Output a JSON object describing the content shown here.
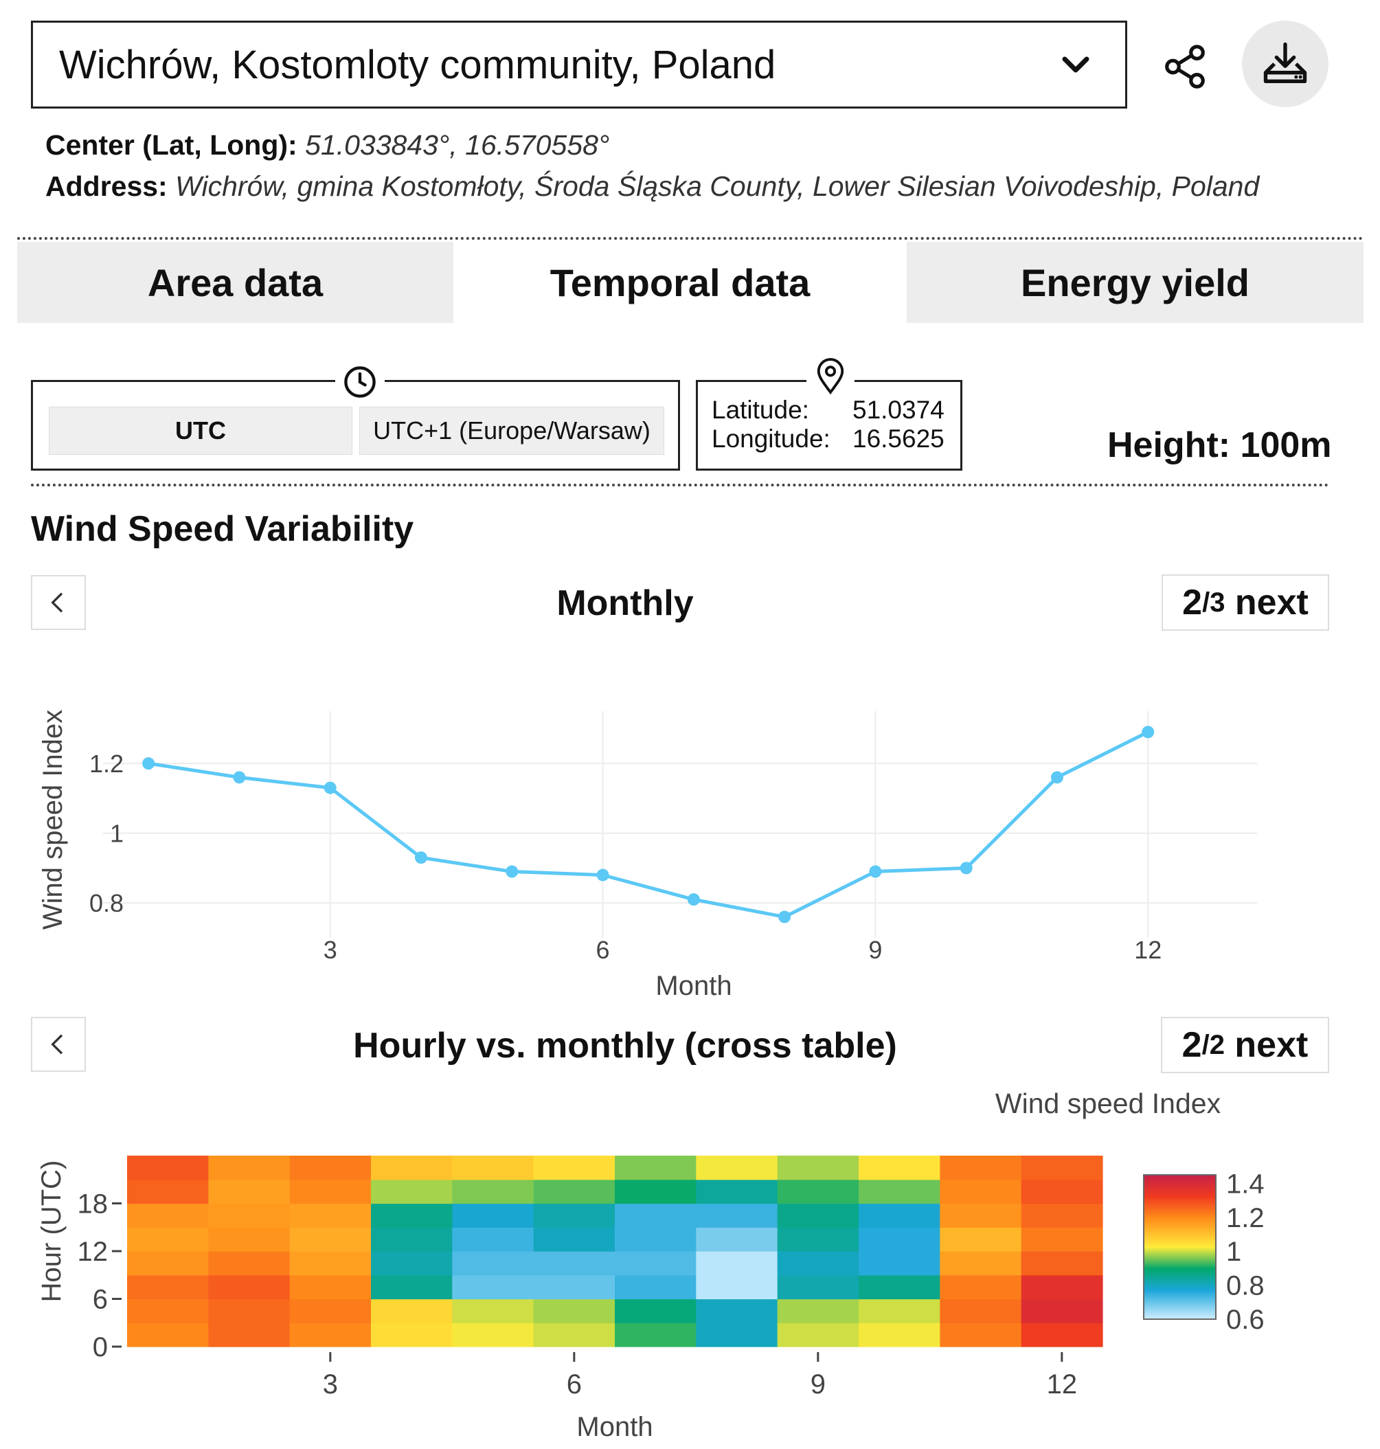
{
  "location": {
    "selected": "Wichrów, Kostomloty community, Poland"
  },
  "info": {
    "center_label": "Center (Lat, Long):",
    "center_value": "51.033843°, 16.570558°",
    "address_label": "Address:",
    "address_value": "Wichrów, gmina Kostomłoty, Środa Śląska County, Lower Silesian Voivodeship, Poland"
  },
  "tabs": [
    {
      "label": "Area data"
    },
    {
      "label": "Temporal data"
    },
    {
      "label": "Energy yield"
    }
  ],
  "timezone": {
    "options": [
      "UTC",
      "UTC+1 (Europe/Warsaw)"
    ]
  },
  "coords": {
    "lat_label": "Latitude:",
    "lat_value": "51.0374",
    "lon_label": "Longitude:",
    "lon_value": "16.5625"
  },
  "height_label": "Height: 100m",
  "section_title": "Wind Speed Variability",
  "monthly_panel": {
    "title": "Monthly",
    "page_num": "2",
    "page_total": "/3",
    "next": "next"
  },
  "cross_panel": {
    "title": "Hourly vs. monthly (cross table)",
    "page_num": "2",
    "page_total": "/2",
    "next": "next"
  },
  "colors": {
    "line": "#5bc8f5",
    "gray_tab": "#ededed"
  },
  "chart_data": [
    {
      "type": "line",
      "title": "Monthly",
      "xlabel": "Month",
      "ylabel": "Wind speed Index",
      "x": [
        1,
        2,
        3,
        4,
        5,
        6,
        7,
        8,
        9,
        10,
        11,
        12
      ],
      "values": [
        1.2,
        1.16,
        1.13,
        0.93,
        0.89,
        0.88,
        0.81,
        0.76,
        0.89,
        0.9,
        1.16,
        1.29
      ],
      "xticks": [
        3,
        6,
        9,
        12
      ],
      "yticks": [
        0.8,
        1,
        1.2
      ],
      "xlim": [
        0.5,
        13.2
      ],
      "ylim": [
        0.7,
        1.35
      ]
    },
    {
      "type": "heatmap",
      "title": "Hourly vs. monthly (cross table)",
      "xlabel": "Month",
      "ylabel": "Hour (UTC)",
      "colorbar_title": "Wind speed Index",
      "colorbar_ticks": [
        "1.4",
        "1.2",
        "1",
        "0.8",
        "0.6"
      ],
      "colorbar_range": [
        0.6,
        1.45
      ],
      "xticks": [
        3,
        6,
        9,
        12
      ],
      "yticks": [
        0,
        6,
        12,
        18
      ],
      "months": [
        1,
        2,
        3,
        4,
        5,
        6,
        7,
        8,
        9,
        10,
        11,
        12
      ],
      "hours": [
        0,
        3,
        6,
        9,
        12,
        15,
        18,
        21
      ],
      "values": [
        [
          1.2,
          1.25,
          1.2,
          1.05,
          1.02,
          1.0,
          0.92,
          0.8,
          1.0,
          1.02,
          1.22,
          1.32
        ],
        [
          1.22,
          1.25,
          1.22,
          1.06,
          1.0,
          0.98,
          0.88,
          0.8,
          0.98,
          1.0,
          1.24,
          1.38
        ],
        [
          1.24,
          1.27,
          1.2,
          0.85,
          0.7,
          0.7,
          0.74,
          0.62,
          0.82,
          0.86,
          1.22,
          1.36
        ],
        [
          1.18,
          1.22,
          1.16,
          0.82,
          0.72,
          0.72,
          0.72,
          0.62,
          0.8,
          0.76,
          1.16,
          1.26
        ],
        [
          1.16,
          1.18,
          1.14,
          0.84,
          0.74,
          0.8,
          0.74,
          0.68,
          0.84,
          0.76,
          1.12,
          1.22
        ],
        [
          1.18,
          1.17,
          1.16,
          0.86,
          0.78,
          0.82,
          0.74,
          0.74,
          0.86,
          0.78,
          1.18,
          1.25
        ],
        [
          1.26,
          1.16,
          1.2,
          0.98,
          0.96,
          0.94,
          0.9,
          0.84,
          0.92,
          0.95,
          1.2,
          1.28
        ],
        [
          1.28,
          1.18,
          1.22,
          1.1,
          1.08,
          1.05,
          0.96,
          1.02,
          0.98,
          1.04,
          1.22,
          1.26
        ]
      ]
    }
  ]
}
